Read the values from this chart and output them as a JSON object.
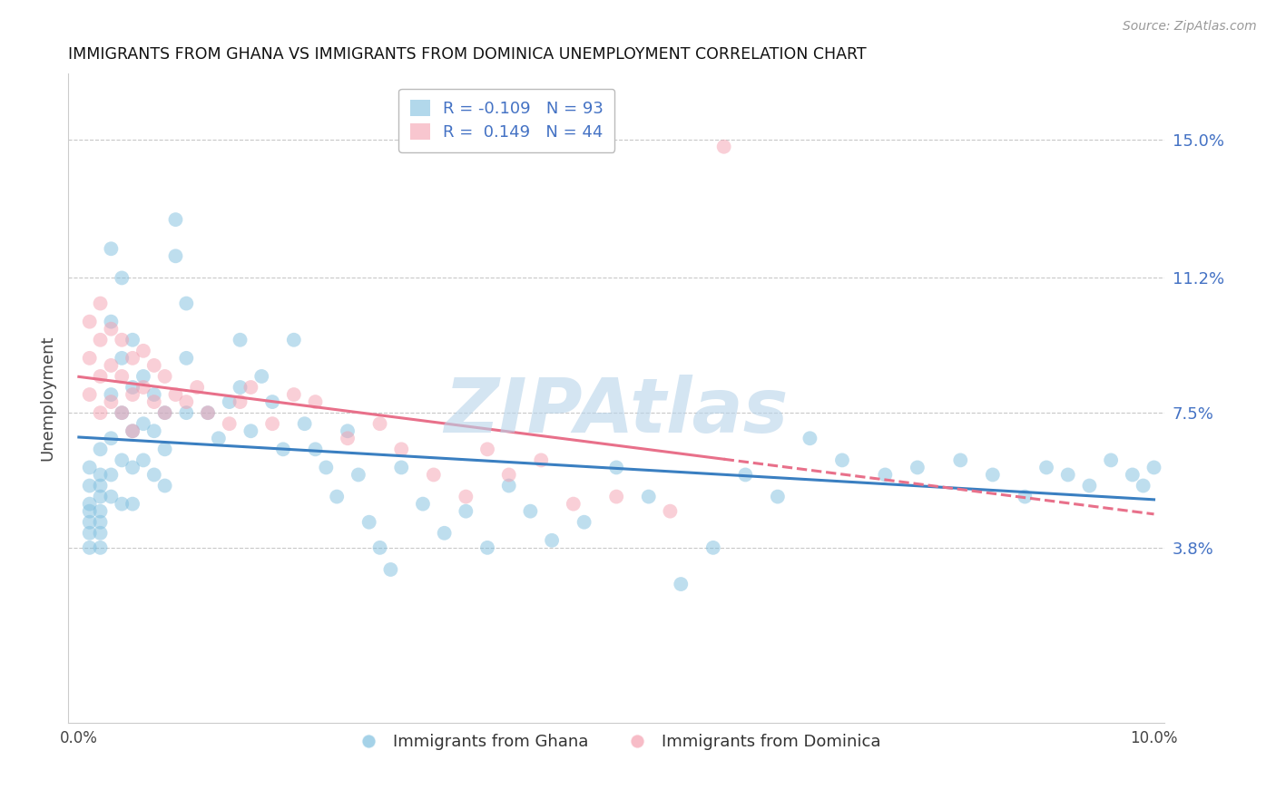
{
  "title": "IMMIGRANTS FROM GHANA VS IMMIGRANTS FROM DOMINICA UNEMPLOYMENT CORRELATION CHART",
  "source": "Source: ZipAtlas.com",
  "ylabel": "Unemployment",
  "xlim": [
    -0.001,
    0.101
  ],
  "ylim": [
    -0.01,
    0.168
  ],
  "yticks": [
    0.038,
    0.075,
    0.112,
    0.15
  ],
  "ytick_labels": [
    "3.8%",
    "7.5%",
    "11.2%",
    "15.0%"
  ],
  "xticks": [
    0.0,
    0.1
  ],
  "xtick_labels": [
    "0.0%",
    "10.0%"
  ],
  "ghana_R": -0.109,
  "ghana_N": 93,
  "dominica_R": 0.149,
  "dominica_N": 44,
  "ghana_color": "#7fbfdf",
  "dominica_color": "#f4a0b0",
  "ghana_line_color": "#3a7fc1",
  "dominica_line_color": "#e8708a",
  "legend_label_ghana": "Immigrants from Ghana",
  "legend_label_dominica": "Immigrants from Dominica",
  "watermark": "ZIPAtlas",
  "watermark_color": "#b8d4ea",
  "ghana_x": [
    0.001,
    0.001,
    0.001,
    0.001,
    0.001,
    0.001,
    0.001,
    0.002,
    0.002,
    0.002,
    0.002,
    0.002,
    0.002,
    0.002,
    0.002,
    0.003,
    0.003,
    0.003,
    0.003,
    0.003,
    0.003,
    0.004,
    0.004,
    0.004,
    0.004,
    0.004,
    0.005,
    0.005,
    0.005,
    0.005,
    0.005,
    0.006,
    0.006,
    0.006,
    0.007,
    0.007,
    0.007,
    0.008,
    0.008,
    0.008,
    0.009,
    0.009,
    0.01,
    0.01,
    0.01,
    0.012,
    0.013,
    0.014,
    0.015,
    0.015,
    0.016,
    0.017,
    0.018,
    0.019,
    0.02,
    0.021,
    0.022,
    0.023,
    0.024,
    0.025,
    0.026,
    0.027,
    0.028,
    0.029,
    0.03,
    0.032,
    0.034,
    0.036,
    0.038,
    0.04,
    0.042,
    0.044,
    0.047,
    0.05,
    0.053,
    0.056,
    0.059,
    0.062,
    0.065,
    0.068,
    0.071,
    0.075,
    0.078,
    0.082,
    0.085,
    0.088,
    0.09,
    0.092,
    0.094,
    0.096,
    0.098,
    0.099,
    0.1
  ],
  "ghana_y": [
    0.06,
    0.055,
    0.05,
    0.048,
    0.045,
    0.042,
    0.038,
    0.065,
    0.058,
    0.055,
    0.052,
    0.048,
    0.045,
    0.042,
    0.038,
    0.12,
    0.1,
    0.08,
    0.068,
    0.058,
    0.052,
    0.112,
    0.09,
    0.075,
    0.062,
    0.05,
    0.095,
    0.082,
    0.07,
    0.06,
    0.05,
    0.085,
    0.072,
    0.062,
    0.08,
    0.07,
    0.058,
    0.075,
    0.065,
    0.055,
    0.128,
    0.118,
    0.105,
    0.09,
    0.075,
    0.075,
    0.068,
    0.078,
    0.095,
    0.082,
    0.07,
    0.085,
    0.078,
    0.065,
    0.095,
    0.072,
    0.065,
    0.06,
    0.052,
    0.07,
    0.058,
    0.045,
    0.038,
    0.032,
    0.06,
    0.05,
    0.042,
    0.048,
    0.038,
    0.055,
    0.048,
    0.04,
    0.045,
    0.06,
    0.052,
    0.028,
    0.038,
    0.058,
    0.052,
    0.068,
    0.062,
    0.058,
    0.06,
    0.062,
    0.058,
    0.052,
    0.06,
    0.058,
    0.055,
    0.062,
    0.058,
    0.055,
    0.06
  ],
  "dominica_x": [
    0.001,
    0.001,
    0.001,
    0.002,
    0.002,
    0.002,
    0.002,
    0.003,
    0.003,
    0.003,
    0.004,
    0.004,
    0.004,
    0.005,
    0.005,
    0.005,
    0.006,
    0.006,
    0.007,
    0.007,
    0.008,
    0.008,
    0.009,
    0.01,
    0.011,
    0.012,
    0.014,
    0.015,
    0.016,
    0.018,
    0.02,
    0.022,
    0.025,
    0.028,
    0.03,
    0.033,
    0.036,
    0.038,
    0.04,
    0.043,
    0.046,
    0.05,
    0.055,
    0.06
  ],
  "dominica_y": [
    0.1,
    0.09,
    0.08,
    0.105,
    0.095,
    0.085,
    0.075,
    0.098,
    0.088,
    0.078,
    0.095,
    0.085,
    0.075,
    0.09,
    0.08,
    0.07,
    0.092,
    0.082,
    0.088,
    0.078,
    0.085,
    0.075,
    0.08,
    0.078,
    0.082,
    0.075,
    0.072,
    0.078,
    0.082,
    0.072,
    0.08,
    0.078,
    0.068,
    0.072,
    0.065,
    0.058,
    0.052,
    0.065,
    0.058,
    0.062,
    0.05,
    0.052,
    0.048,
    0.148
  ]
}
